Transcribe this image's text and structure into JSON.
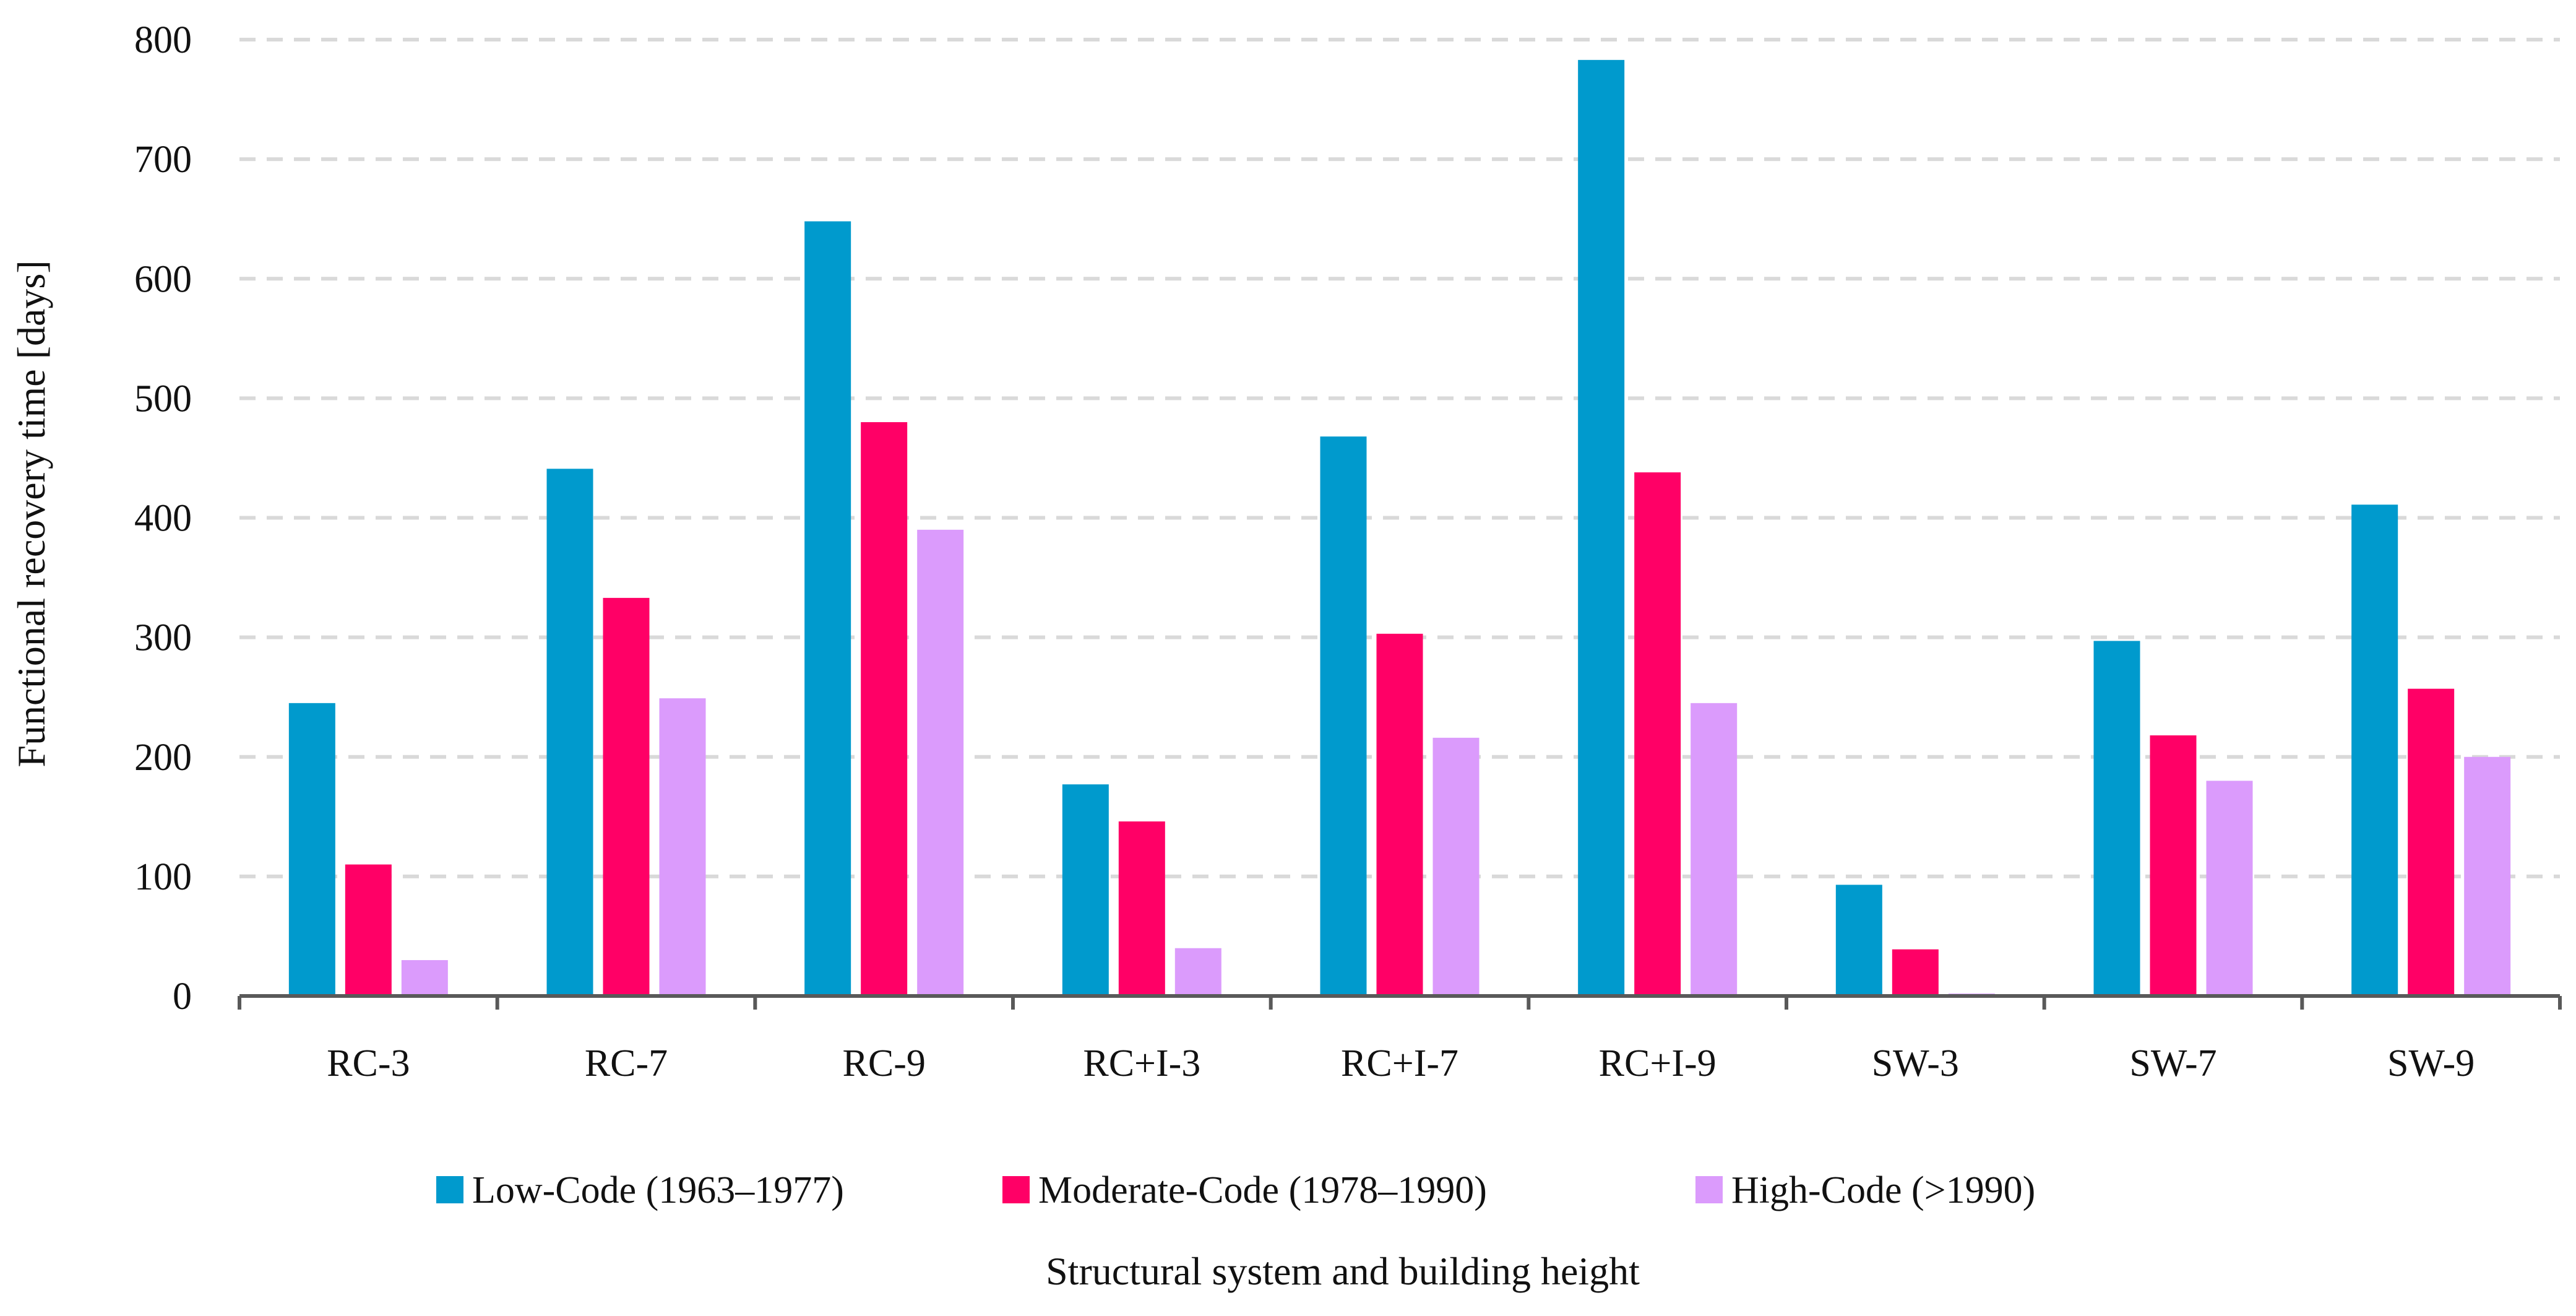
{
  "chart_data": {
    "type": "bar",
    "title": "",
    "xlabel": "Structural system and building height",
    "ylabel": "Functional recovery time [days]",
    "ylim": [
      0,
      800
    ],
    "yticks": [
      "0",
      "100",
      "200",
      "300",
      "400",
      "500",
      "600",
      "700",
      "800"
    ],
    "grid": true,
    "legend_position": "bottom",
    "categories": [
      "RC-3",
      "RC-7",
      "RC-9",
      "RC+I-3",
      "RC+I-7",
      "RC+I-9",
      "SW-3",
      "SW-7",
      "SW-9"
    ],
    "series": [
      {
        "name": "Low-Code (1963–1977)",
        "color": "#009ACD",
        "values": [
          245,
          441,
          648,
          177,
          468,
          783,
          93,
          297,
          411
        ]
      },
      {
        "name": "Moderate-Code (1978–1990)",
        "color": "#FF0066",
        "values": [
          110,
          333,
          480,
          146,
          303,
          438,
          39,
          218,
          257
        ]
      },
      {
        "name": "High-Code (>1990)",
        "color": "#DB9BFC",
        "values": [
          30,
          249,
          390,
          40,
          216,
          245,
          2,
          180,
          200
        ]
      }
    ]
  }
}
